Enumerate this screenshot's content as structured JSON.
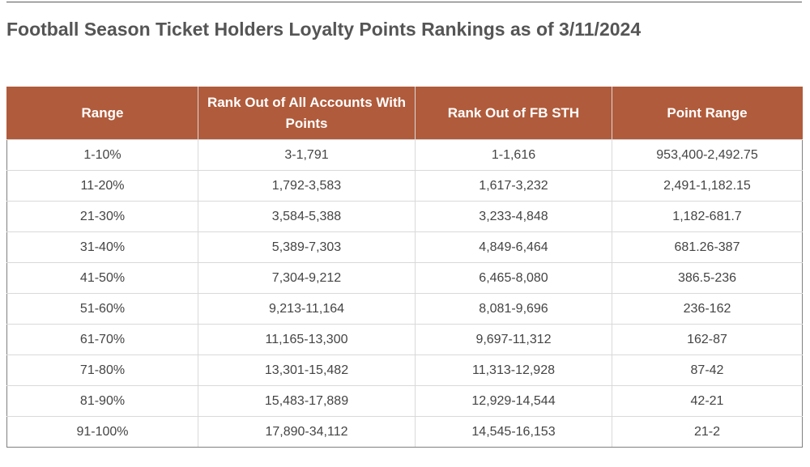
{
  "page": {
    "title": "Football Season Ticket Holders Loyalty Points Rankings as of 3/11/2024"
  },
  "table": {
    "headers": [
      "Range",
      "Rank Out of All Accounts With Points",
      "Rank Out of FB STH",
      "Point Range"
    ],
    "rows": [
      [
        "1-10%",
        "3-1,791",
        "1-1,616",
        "953,400-2,492.75"
      ],
      [
        "11-20%",
        "1,792-3,583",
        "1,617-3,232",
        "2,491-1,182.15"
      ],
      [
        "21-30%",
        "3,584-5,388",
        "3,233-4,848",
        "1,182-681.7"
      ],
      [
        "31-40%",
        "5,389-7,303",
        "4,849-6,464",
        "681.26-387"
      ],
      [
        "41-50%",
        "7,304-9,212",
        "6,465-8,080",
        "386.5-236"
      ],
      [
        "51-60%",
        "9,213-11,164",
        "8,081-9,696",
        "236-162"
      ],
      [
        "61-70%",
        "11,165-13,300",
        "9,697-11,312",
        "162-87"
      ],
      [
        "71-80%",
        "13,301-15,482",
        "11,313-12,928",
        "87-42"
      ],
      [
        "81-90%",
        "15,483-17,889",
        "12,929-14,544",
        "42-21"
      ],
      [
        "91-100%",
        "17,890-34,112",
        "14,545-16,153",
        "21-2"
      ]
    ]
  },
  "colors": {
    "header_background": "#b05b3b",
    "header_text": "#ffffff",
    "title_text": "#555555",
    "cell_text": "#444444"
  }
}
